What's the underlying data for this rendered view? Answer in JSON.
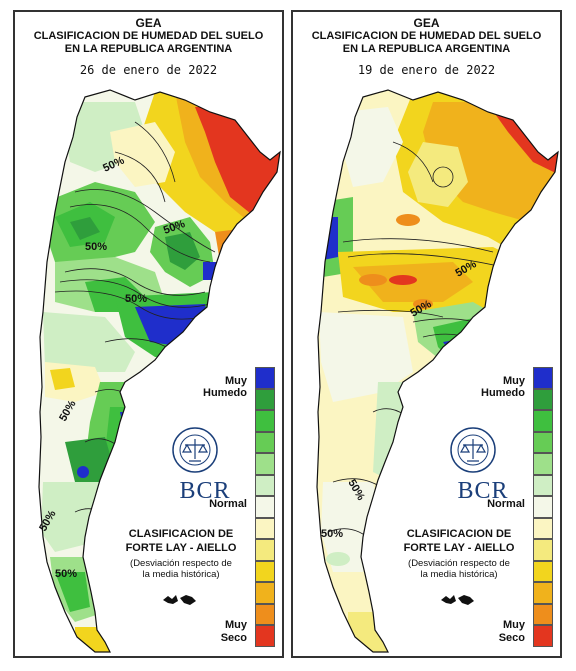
{
  "panels": [
    {
      "org": "GEA",
      "title_line1": "CLASIFICACION DE HUMEDAD DEL SUELO",
      "title_line2": "EN LA REPUBLICA ARGENTINA",
      "date": "26 de enero de 2022",
      "contour_labels": [
        "50%",
        "50%",
        "50%",
        "50%",
        "50%",
        "50%",
        "50%"
      ]
    },
    {
      "org": "GEA",
      "title_line1": "CLASIFICACION DE HUMEDAD DEL SUELO",
      "title_line2": "EN LA REPUBLICA ARGENTINA",
      "date": "19 de enero de 2022",
      "contour_labels": [
        "50%",
        "50%",
        "50%",
        "50%"
      ]
    }
  ],
  "legend": {
    "top_label_1": "Muy",
    "top_label_2": "Humedo",
    "middle_label": "Normal",
    "bottom_label_1": "Muy",
    "bottom_label_2": "Seco",
    "classes": [
      "#1f2ecb",
      "#2f9e3c",
      "#3fbf3f",
      "#66cc55",
      "#9ee08a",
      "#cfeec4",
      "#f4f7e8",
      "#fbf5c2",
      "#f4ea7e",
      "#f2d51e",
      "#f0b21c",
      "#ee8e1c",
      "#e3361f"
    ]
  },
  "method_title_1": "CLASIFICACION DE",
  "method_title_2": "FORTE LAY - AIELLO",
  "method_note_1": "(Desviación respecto de",
  "method_note_2": "la media histórica)",
  "logo": {
    "text": "BCR",
    "seal_text": "BOLSA DE COMERCIO DE ROSARIO"
  }
}
